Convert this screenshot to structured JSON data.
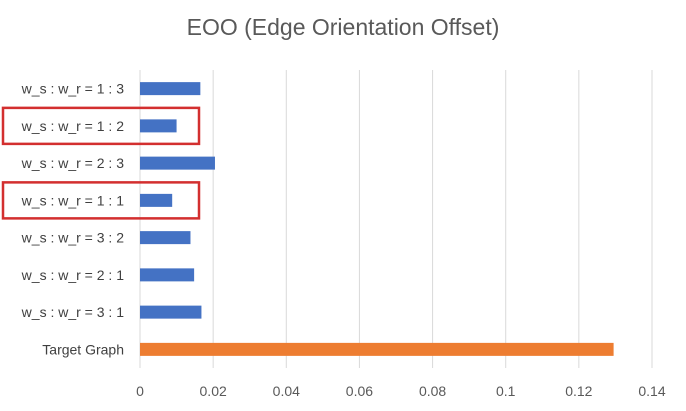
{
  "chart_data": {
    "type": "bar",
    "orientation": "horizontal",
    "title": "EOO (Edge Orientation Offset)",
    "xlabel": "",
    "ylabel": "",
    "xlim": [
      0,
      0.14
    ],
    "x_ticks": [
      "0",
      "0.02",
      "0.04",
      "0.06",
      "0.08",
      "0.1",
      "0.12",
      "0.14"
    ],
    "grid": "vertical",
    "categories": [
      "w_s : w_r = 1 : 3",
      "w_s : w_r = 1 : 2",
      "w_s : w_r = 2 : 3",
      "w_s : w_r = 1 : 1",
      "w_s : w_r = 3 : 2",
      "w_s : w_r = 2 : 1",
      "w_s : w_r = 3 : 1",
      "Target Graph"
    ],
    "values": [
      0.0165,
      0.01,
      0.0205,
      0.0088,
      0.0138,
      0.0148,
      0.0168,
      0.1295
    ],
    "bar_colors": [
      "#4472c4",
      "#4472c4",
      "#4472c4",
      "#4472c4",
      "#4472c4",
      "#4472c4",
      "#4472c4",
      "#ed7d31"
    ],
    "highlighted": [
      "w_s : w_r = 1 : 2",
      "w_s : w_r = 1 : 1"
    ],
    "highlight_color": "#d32f2f",
    "grid_color": "#d9d9d9"
  }
}
